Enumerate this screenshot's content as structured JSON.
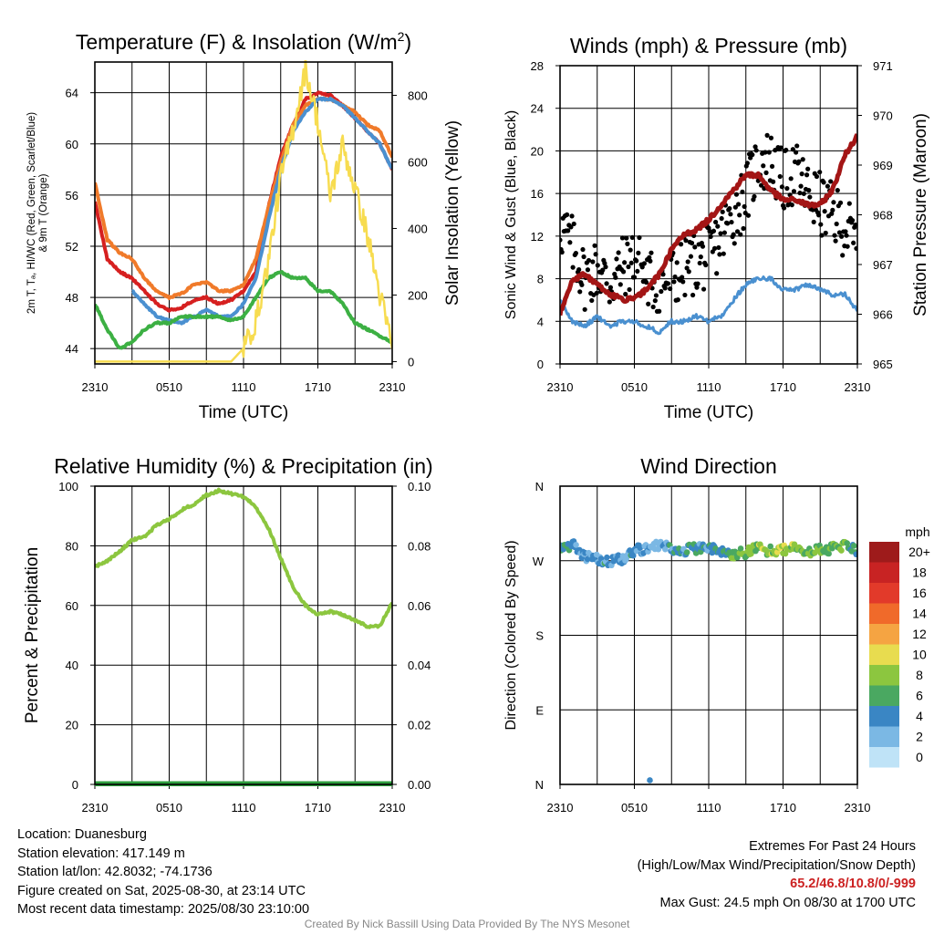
{
  "chart_data": [
    {
      "type": "line",
      "title": "Temperature (F) & Insolation (W/m²)",
      "xlabel": "Time (UTC)",
      "ylabel": "2m T, Td, HI/WC (Red, Green, Scarlet/Blue) & 9m T (Orange)",
      "ylabel_lines": [
        "2m T, Tₐ, HI/WC (Red, Green, Scarlet/Blue)",
        "& 9m T (Orange)"
      ],
      "y2label": "Solar Insolation (Yellow)",
      "x_ticks": [
        "2310",
        "0510",
        "1110",
        "1710",
        "2310"
      ],
      "ylim": [
        42.8,
        66.4
      ],
      "y_ticks": [
        44,
        48,
        52,
        56,
        60,
        64
      ],
      "y2lim": [
        -7,
        900
      ],
      "y2_ticks": [
        0,
        200,
        400,
        600,
        800
      ],
      "grid": true,
      "hours": [
        0,
        1,
        2,
        3,
        4,
        5,
        6,
        7,
        8,
        9,
        10,
        11,
        12,
        13,
        14,
        15,
        16,
        17,
        18,
        19,
        20,
        21,
        22,
        23,
        24
      ],
      "series": [
        {
          "color": "#d62020",
          "axis": "left",
          "values": [
            55.5,
            51,
            50,
            49.5,
            48.5,
            47.5,
            47,
            47.2,
            47.8,
            48,
            47.5,
            47.8,
            48.5,
            50,
            55,
            59,
            61.5,
            63.5,
            64,
            63.8,
            63,
            62,
            61,
            60,
            58
          ]
        },
        {
          "color": "#f07a2a",
          "axis": "left",
          "values": [
            57,
            52.5,
            51.5,
            51,
            49.5,
            48.5,
            48,
            48.3,
            49,
            49.2,
            48.5,
            48.5,
            49,
            51,
            55,
            58.5,
            61.5,
            63,
            63.5,
            63.5,
            63,
            62.5,
            61.5,
            61,
            59
          ]
        },
        {
          "color": "#4a90d0",
          "axis": "left",
          "values": [
            54.5,
            null,
            null,
            48.5,
            47.5,
            46.5,
            46.2,
            46,
            46.5,
            47,
            46.5,
            46.5,
            47.5,
            49.5,
            54,
            58,
            61,
            62.5,
            63.5,
            63.5,
            63,
            62,
            61,
            60,
            58
          ]
        },
        {
          "color": "#3cb043",
          "axis": "left",
          "values": [
            47.5,
            45.5,
            44,
            44.5,
            45.5,
            46,
            46,
            46.5,
            46.5,
            46.5,
            46.5,
            46.2,
            46.5,
            48,
            49.5,
            50,
            49.5,
            49.5,
            48.5,
            48.5,
            47.5,
            46,
            45.5,
            45,
            44.5
          ]
        },
        {
          "color": "#f7dc50",
          "axis": "right",
          "values": [
            0,
            0,
            0,
            0,
            0,
            0,
            0,
            0,
            0,
            0,
            0,
            0,
            40,
            120,
            300,
            550,
            700,
            880,
            720,
            500,
            650,
            520,
            380,
            200,
            50
          ]
        }
      ]
    },
    {
      "type": "line",
      "title": "Winds (mph) & Pressure (mb)",
      "xlabel": "Time (UTC)",
      "ylabel": "Sonic Wind & Gust (Blue, Black)",
      "y2label": "Station Pressure (Maroon)",
      "x_ticks": [
        "2310",
        "0510",
        "1110",
        "1710",
        "2310"
      ],
      "ylim": [
        0,
        28
      ],
      "y_ticks": [
        0,
        4,
        8,
        12,
        16,
        20,
        24,
        28
      ],
      "y2lim": [
        965,
        971
      ],
      "y2_ticks": [
        965,
        966,
        967,
        968,
        969,
        970,
        971
      ],
      "grid": true,
      "hours": [
        0,
        1,
        2,
        3,
        4,
        5,
        6,
        7,
        8,
        9,
        10,
        11,
        12,
        13,
        14,
        15,
        16,
        17,
        18,
        19,
        20,
        21,
        22,
        23,
        24
      ],
      "series": [
        {
          "color": "#4a90d0",
          "axis": "left",
          "kind": "line",
          "values": [
            6,
            4,
            3.5,
            4.5,
            3.5,
            4,
            4,
            3.5,
            3,
            4,
            4,
            4.5,
            4,
            4.5,
            6,
            7.5,
            8,
            8,
            7,
            7,
            7.5,
            7,
            6.5,
            6.5,
            5
          ]
        },
        {
          "color": "#000000",
          "axis": "left",
          "kind": "points",
          "values": [
            13,
            11,
            8,
            9,
            7.5,
            9,
            10,
            8,
            7.5,
            8,
            9,
            9.5,
            10,
            12,
            14,
            16,
            19,
            19,
            17,
            18,
            16,
            15,
            14,
            13,
            11
          ]
        },
        {
          "color": "#a31515",
          "axis": "right",
          "kind": "line",
          "values": [
            966,
            966.7,
            966.8,
            966.6,
            966.4,
            966.3,
            966.3,
            966.5,
            966.8,
            967.3,
            967.6,
            967.7,
            967.9,
            968.2,
            968.5,
            968.8,
            968.8,
            968.5,
            968.3,
            968.3,
            968.2,
            968.2,
            968.5,
            969.2,
            969.6
          ]
        }
      ]
    },
    {
      "type": "line",
      "title": "Relative Humidity (%) & Precipitation (in)",
      "xlabel": "",
      "ylabel": "Percent & Precipitation",
      "x_ticks": [
        "2310",
        "0510",
        "1110",
        "1710",
        "2310"
      ],
      "ylim": [
        0,
        100
      ],
      "y_ticks": [
        0,
        20,
        40,
        60,
        80,
        100
      ],
      "y2lim": [
        0,
        0.1
      ],
      "y2_ticks": [
        "0.00",
        "0.02",
        "0.04",
        "0.06",
        "0.08",
        "0.10"
      ],
      "grid": true,
      "hours": [
        0,
        1,
        2,
        3,
        4,
        5,
        6,
        7,
        8,
        9,
        10,
        11,
        12,
        13,
        14,
        15,
        16,
        17,
        18,
        19,
        20,
        21,
        22,
        23,
        24
      ],
      "series": [
        {
          "color": "#8cc63f",
          "axis": "left",
          "values": [
            73,
            75,
            78,
            82,
            83,
            87,
            89,
            92,
            94,
            97,
            98.5,
            97.5,
            96.5,
            93,
            86,
            76,
            66,
            60,
            57,
            58,
            57,
            55,
            53,
            53,
            61
          ]
        },
        {
          "color": "#2e9e3e",
          "axis": "right",
          "values": [
            0,
            0,
            0,
            0,
            0,
            0,
            0,
            0,
            0,
            0,
            0,
            0,
            0,
            0,
            0,
            0,
            0,
            0,
            0,
            0,
            0,
            0,
            0,
            0,
            0
          ]
        }
      ]
    },
    {
      "type": "scatter",
      "title": "Wind Direction",
      "xlabel": "",
      "ylabel": "Direction (Colored By Speed)",
      "x_ticks": [
        "2310",
        "0510",
        "1110",
        "1710",
        "2310"
      ],
      "y_ticks": [
        "N",
        "W",
        "S",
        "E",
        "N"
      ],
      "ylim_deg": [
        360,
        0
      ],
      "grid": true,
      "hours": [
        0,
        1,
        2,
        3,
        4,
        5,
        6,
        7,
        8,
        9,
        10,
        11,
        12,
        13,
        14,
        15,
        16,
        17,
        18,
        19,
        20,
        21,
        22,
        23,
        24
      ],
      "direction_deg": [
        285,
        290,
        275,
        272,
        268,
        272,
        283,
        285,
        290,
        285,
        283,
        285,
        287,
        280,
        278,
        280,
        285,
        282,
        283,
        285,
        280,
        283,
        285,
        287,
        283
      ],
      "speed_mph": [
        5,
        4,
        3,
        3,
        4,
        3,
        4,
        3,
        2,
        4,
        4,
        4,
        4,
        5,
        6,
        7,
        8,
        8,
        9,
        8,
        7,
        7,
        6,
        7,
        5
      ],
      "outlier": {
        "hour": 7.25,
        "direction_deg": 5,
        "speed_mph": 3
      },
      "colorbar": {
        "unit": "mph",
        "labels": [
          "20+",
          "18",
          "16",
          "14",
          "12",
          "10",
          "8",
          "6",
          "4",
          "2",
          "0"
        ],
        "colors": [
          "#9e1b1b",
          "#c82323",
          "#e23a2a",
          "#f06a2a",
          "#f5a442",
          "#e8dc4f",
          "#8cc63f",
          "#4aa861",
          "#3a86c4",
          "#7bb8e4",
          "#bfe3f7"
        ]
      }
    }
  ],
  "footer": {
    "location": "Location: Duanesburg",
    "elevation": "Station elevation: 417.149 m",
    "latlon": "Station lat/lon: 42.8032; -74.1736",
    "created": "Figure created on Sat, 2025-08-30, at 23:14 UTC",
    "recent": "Most recent data timestamp: 2025/08/30 23:10:00",
    "extremes_title": "Extremes For Past 24 Hours",
    "extremes_sub": "(High/Low/Max Wind/Precipitation/Snow Depth)",
    "extremes_values": "65.2/46.8/10.8/0/-999",
    "max_gust": "Max Gust: 24.5 mph On 08/30 at 1700 UTC",
    "credit": "Created By Nick Bassill Using Data Provided By The NYS Mesonet"
  }
}
